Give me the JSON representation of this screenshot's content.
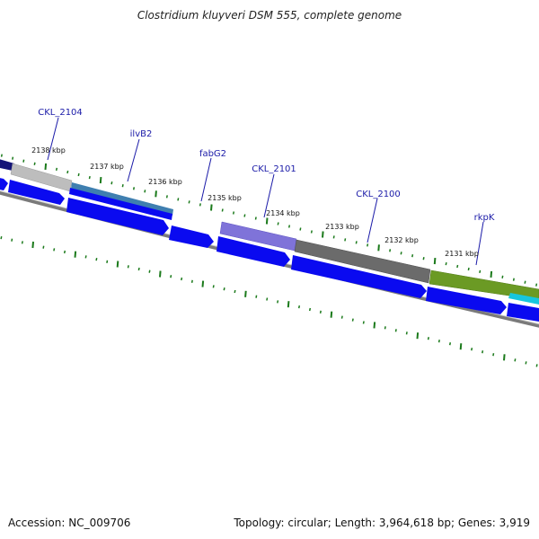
{
  "title": "Clostridium kluyveri DSM 555, complete genome",
  "footer": {
    "accession": "Accession: NC_009706",
    "summary": "Topology: circular; Length: 3,964,618 bp; Genes: 3,919"
  },
  "colors": {
    "gene_blue": "#0a0af0",
    "tick_green": "#1b7a1b",
    "gene_label": "#1a1aa8",
    "backbone_gray": "#7a7a7a"
  },
  "gene_labels": [
    {
      "text": "CKL_2104",
      "icon": "ckl-2104-label"
    },
    {
      "text": "ilvB2",
      "icon": "ilvb2-label"
    },
    {
      "text": "fabG2",
      "icon": "fabg2-label"
    },
    {
      "text": "CKL_2101",
      "icon": "ckl-2101-label"
    },
    {
      "text": "CKL_2100",
      "icon": "ckl-2100-label"
    },
    {
      "text": "rkpK",
      "icon": "rkpk-label"
    }
  ],
  "position_labels": [
    "2138 kbp",
    "2137 kbp",
    "2136 kbp",
    "2135 kbp",
    "2134 kbp",
    "2133 kbp",
    "2132 kbp",
    "2131 kbp"
  ]
}
